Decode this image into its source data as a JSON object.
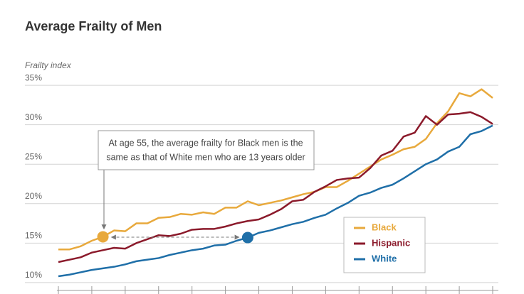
{
  "chart_data": {
    "type": "line",
    "title": "Average Frailty of Men",
    "y_label": "Frailty index",
    "categories": [
      null,
      null,
      null,
      null,
      null,
      null,
      null,
      null,
      null,
      null,
      null,
      null,
      null,
      null,
      null,
      null,
      null,
      null,
      null,
      null,
      null,
      null,
      null,
      null,
      null,
      null,
      null,
      null,
      null,
      null,
      null,
      null,
      null,
      null,
      null,
      null,
      null,
      null,
      null,
      null
    ],
    "series": [
      {
        "name": "Black",
        "color": "#e8a93c",
        "values": [
          14.2,
          14.2,
          14.6,
          15.3,
          15.8,
          16.6,
          16.5,
          17.5,
          17.5,
          18.2,
          18.3,
          18.7,
          18.6,
          18.9,
          18.7,
          19.5,
          19.5,
          20.3,
          19.8,
          20.1,
          20.4,
          20.8,
          21.2,
          21.5,
          22.1,
          22.1,
          22.9,
          23.8,
          24.7,
          25.6,
          26.2,
          26.9,
          27.2,
          28.2,
          30.2,
          31.7,
          34.0,
          33.6,
          34.5,
          33.4
        ]
      },
      {
        "name": "Hispanic",
        "color": "#8b1a2b",
        "values": [
          12.6,
          12.9,
          13.2,
          13.8,
          14.1,
          14.4,
          14.3,
          15.0,
          15.5,
          16.0,
          15.9,
          16.2,
          16.7,
          16.8,
          16.8,
          17.1,
          17.5,
          17.8,
          18.0,
          18.6,
          19.3,
          20.3,
          20.5,
          21.5,
          22.2,
          23.0,
          23.2,
          23.3,
          24.5,
          26.1,
          26.7,
          28.5,
          29.0,
          31.1,
          30.0,
          31.3,
          31.4,
          31.6,
          31.0,
          30.1
        ]
      },
      {
        "name": "White",
        "color": "#1f6fa8",
        "values": [
          10.8,
          11.0,
          11.3,
          11.6,
          11.8,
          12.0,
          12.3,
          12.7,
          12.9,
          13.1,
          13.5,
          13.8,
          14.1,
          14.3,
          14.7,
          14.8,
          15.3,
          15.7,
          16.3,
          16.6,
          17.0,
          17.4,
          17.7,
          18.2,
          18.6,
          19.4,
          20.1,
          21.0,
          21.4,
          22.0,
          22.4,
          23.2,
          24.1,
          25.0,
          25.6,
          26.6,
          27.2,
          28.8,
          29.2,
          29.9
        ]
      }
    ],
    "ylim": [
      9,
      36
    ],
    "yticks": [
      {
        "value": 10,
        "label": "10%"
      },
      {
        "value": 15,
        "label": "15%"
      },
      {
        "value": 20,
        "label": "20%"
      },
      {
        "value": 25,
        "label": "25%"
      },
      {
        "value": 30,
        "label": "30%"
      },
      {
        "value": 35,
        "label": "35%"
      }
    ],
    "grid": true,
    "legend": "lower right",
    "annotation": [
      "At age 55, the average frailty for Black men is the",
      "same as that of White men who are 13 years older"
    ]
  }
}
